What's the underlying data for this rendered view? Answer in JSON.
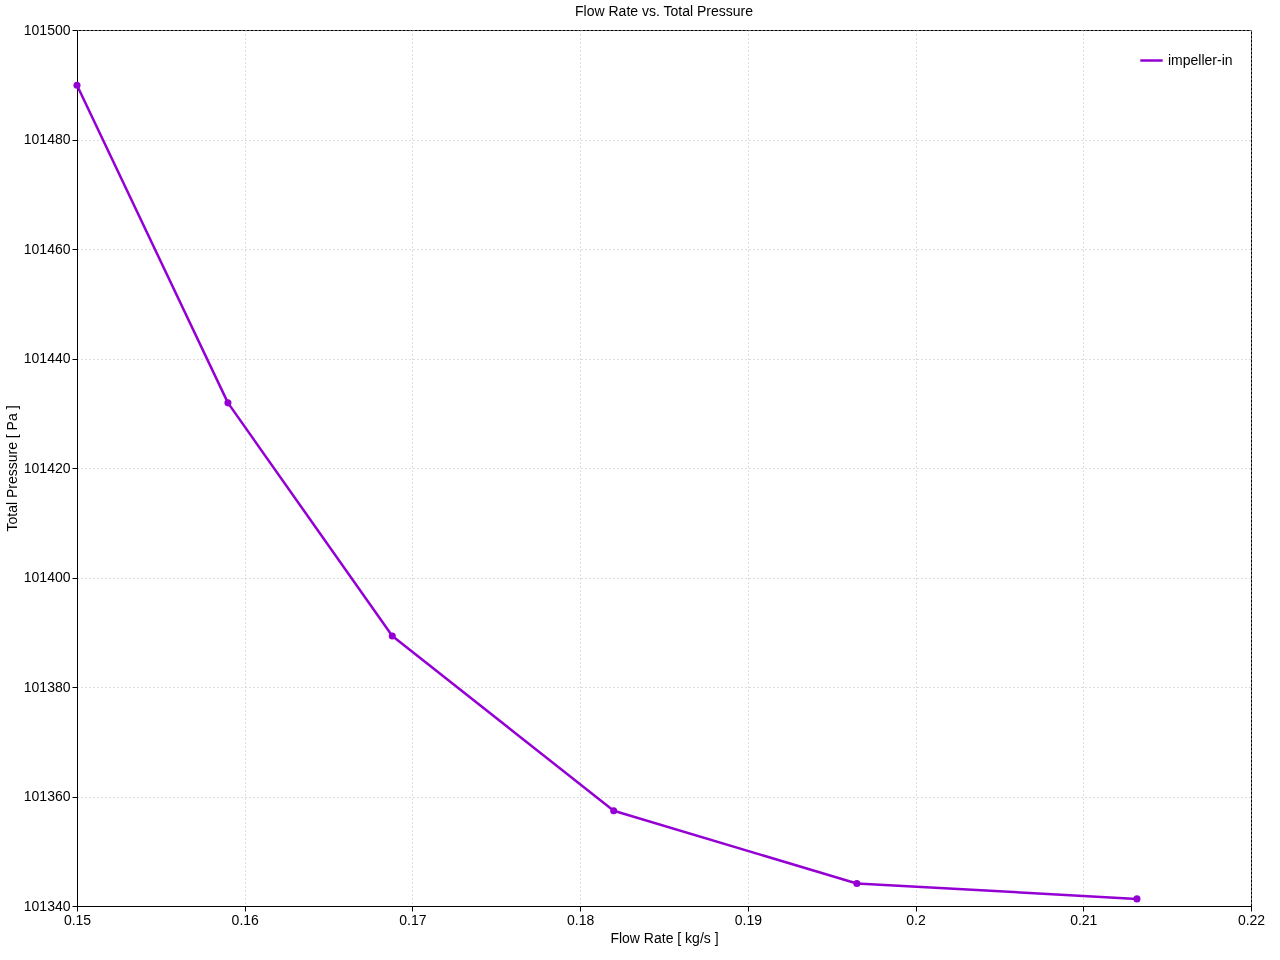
{
  "chart_data": {
    "type": "line",
    "title": "Flow Rate vs. Total Pressure",
    "xlabel": "Flow Rate [ kg/s ]",
    "ylabel": "Total Pressure [ Pa ]",
    "x": [
      0.15,
      0.159,
      0.1688,
      0.182,
      0.1965,
      0.2132
    ],
    "series": [
      {
        "name": "impeller-in",
        "color": "#9400d3",
        "values": [
          101489.9,
          101431.9,
          101389.3,
          101357.4,
          101344.1,
          101341.3
        ]
      }
    ],
    "xlim": [
      0.15,
      0.22
    ],
    "xticks": [
      0.15,
      0.16,
      0.17,
      0.18,
      0.19,
      0.2,
      0.21,
      0.22
    ],
    "ylim": [
      101340,
      101500
    ],
    "yticks": [
      101340,
      101360,
      101380,
      101400,
      101420,
      101440,
      101460,
      101480,
      101500
    ],
    "grid": true,
    "legend": "top right",
    "marker": "circle",
    "line_style": "solid"
  }
}
